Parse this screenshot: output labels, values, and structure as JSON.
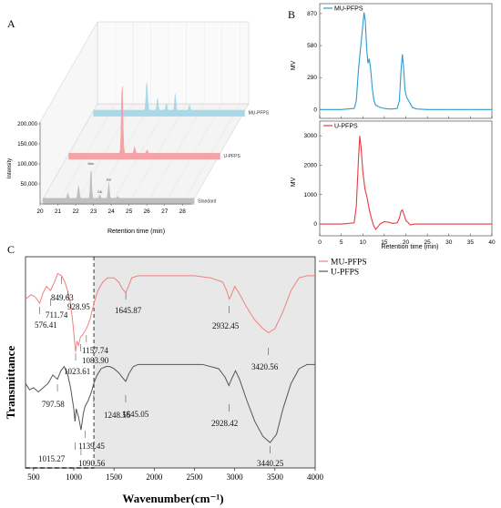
{
  "panel_letters": {
    "a": "A",
    "b": "B",
    "c": "C"
  },
  "chart_data": [
    {
      "id": "A",
      "type": "area",
      "xlabel": "Retention time (min)",
      "ylabel": "Intensity",
      "x_ticks": [
        "20",
        "21",
        "22",
        "23",
        "24",
        "25",
        "26",
        "27",
        "28"
      ],
      "y_ticks": [
        "50,000",
        "100,000",
        "150,000",
        "200,000"
      ],
      "xlim": [
        20,
        28.5
      ],
      "ylim": [
        0,
        200000
      ],
      "series": [
        {
          "name": "Standard",
          "color": "#bdbdbd",
          "peaks": [
            [
              21.4,
              12000,
              0.05
            ],
            [
              22.0,
              28000,
              0.06
            ],
            [
              22.7,
              70000,
              0.05
            ],
            [
              23.2,
              8000,
              0.05
            ],
            [
              23.7,
              35000,
              0.05
            ],
            [
              24.2,
              5000,
              0.05
            ]
          ],
          "peak_labels": [
            {
              "x": 22.7,
              "text": "Man"
            },
            {
              "x": 23.2,
              "text": "Glc"
            },
            {
              "x": 23.7,
              "text": "Gal"
            }
          ]
        },
        {
          "name": "U-PFPS",
          "color": "#f4a0a2",
          "peaks": [
            [
              23.0,
              160000,
              0.06
            ],
            [
              23.7,
              15000,
              0.05
            ],
            [
              24.4,
              8000,
              0.05
            ]
          ],
          "peak_labels": []
        },
        {
          "name": "MU-PFPS",
          "color": "#a6d8e8",
          "peaks": [
            [
              23.0,
              65000,
              0.06
            ],
            [
              23.6,
              28000,
              0.05
            ],
            [
              24.1,
              15000,
              0.05
            ],
            [
              24.6,
              38000,
              0.05
            ],
            [
              25.4,
              12000,
              0.05
            ]
          ],
          "peak_labels": []
        }
      ]
    },
    {
      "id": "B-top",
      "type": "line",
      "legend": "MU-PFPS",
      "legend_position": "top-left",
      "color": "#2b9bd2",
      "ylabel": "MV",
      "y_ticks": [
        0,
        290,
        580,
        870
      ],
      "ylim": [
        -80,
        960
      ],
      "xlim": [
        0,
        40
      ],
      "x": [
        0,
        5,
        8,
        8.5,
        9,
        9.5,
        10,
        10.3,
        10.6,
        10.9,
        11.2,
        11.5,
        11.8,
        12.2,
        12.6,
        13,
        14,
        15,
        16,
        17,
        18,
        18.5,
        18.9,
        19.2,
        19.5,
        19.8,
        20.2,
        20.8,
        21.5,
        22.5,
        25,
        30,
        35,
        40
      ],
      "y": [
        0,
        0,
        10,
        80,
        360,
        560,
        760,
        880,
        800,
        560,
        420,
        460,
        380,
        200,
        80,
        40,
        20,
        10,
        5,
        5,
        10,
        80,
        360,
        500,
        370,
        180,
        110,
        70,
        20,
        5,
        0,
        0,
        0,
        0
      ]
    },
    {
      "id": "B-bottom",
      "type": "line",
      "legend": "U-PFPS",
      "legend_position": "top-left",
      "color": "#e8393d",
      "xlabel": "Retention time (min)",
      "ylabel": "MV",
      "x_ticks": [
        0,
        5,
        10,
        15,
        20,
        25,
        30,
        35,
        40
      ],
      "y_ticks": [
        0,
        1000,
        2000,
        3000
      ],
      "ylim": [
        -400,
        3500
      ],
      "xlim": [
        0,
        40
      ],
      "x": [
        0,
        5,
        8,
        8.5,
        9,
        9.3,
        9.6,
        10,
        10.5,
        11,
        11.5,
        12,
        12.5,
        13,
        13.5,
        14,
        15,
        16,
        17,
        18,
        18.5,
        18.9,
        19.2,
        19.6,
        20,
        20.6,
        21,
        22,
        25,
        30,
        35,
        40
      ],
      "y": [
        0,
        0,
        40,
        600,
        2200,
        3000,
        2600,
        1800,
        1200,
        900,
        500,
        200,
        -50,
        -180,
        -100,
        0,
        80,
        60,
        20,
        40,
        200,
        440,
        480,
        320,
        120,
        40,
        -30,
        0,
        0,
        0,
        0,
        0
      ]
    },
    {
      "id": "C",
      "type": "line",
      "xlabel": "Wavenumber(cm⁻¹)",
      "ylabel": "Transmittance",
      "x_ticks": [
        500,
        1000,
        1500,
        2000,
        2500,
        3000,
        3500,
        4000
      ],
      "xlim": [
        400,
        4000
      ],
      "ylim": [
        0,
        100
      ],
      "shaded_from": 1250,
      "dashed_at": 1250,
      "legend_position": "top-right",
      "series": [
        {
          "name": "MU-PFPS",
          "color": "#f08080",
          "points": [
            [
              400,
              80
            ],
            [
              470,
              82
            ],
            [
              520,
              81
            ],
            [
              576,
              78
            ],
            [
              620,
              83
            ],
            [
              660,
              86
            ],
            [
              711,
              84
            ],
            [
              760,
              88
            ],
            [
              800,
              92
            ],
            [
              849,
              91
            ],
            [
              890,
              88
            ],
            [
              929,
              83
            ],
            [
              960,
              78
            ],
            [
              990,
              68
            ],
            [
              1010,
              60
            ],
            [
              1023,
              55
            ],
            [
              1040,
              60
            ],
            [
              1060,
              58
            ],
            [
              1083,
              62
            ],
            [
              1110,
              63
            ],
            [
              1157,
              66
            ],
            [
              1200,
              70
            ],
            [
              1250,
              78
            ],
            [
              1300,
              84
            ],
            [
              1360,
              88
            ],
            [
              1420,
              90
            ],
            [
              1500,
              90
            ],
            [
              1560,
              88
            ],
            [
              1600,
              85
            ],
            [
              1646,
              83
            ],
            [
              1680,
              86
            ],
            [
              1720,
              90
            ],
            [
              1800,
              91
            ],
            [
              2000,
              91
            ],
            [
              2200,
              91
            ],
            [
              2500,
              91
            ],
            [
              2700,
              90
            ],
            [
              2850,
              88
            ],
            [
              2900,
              84
            ],
            [
              2932,
              80
            ],
            [
              2960,
              82
            ],
            [
              3000,
              86
            ],
            [
              3050,
              83
            ],
            [
              3150,
              76
            ],
            [
              3250,
              70
            ],
            [
              3350,
              66
            ],
            [
              3420,
              64
            ],
            [
              3500,
              66
            ],
            [
              3600,
              74
            ],
            [
              3700,
              84
            ],
            [
              3800,
              90
            ],
            [
              3900,
              91
            ],
            [
              4000,
              91
            ]
          ],
          "peak_labels": [
            {
              "text": "576.41",
              "x": 576
            },
            {
              "text": "711.74",
              "x": 711
            },
            {
              "text": "849.63",
              "x": 849
            },
            {
              "text": "928.95",
              "x": 929
            },
            {
              "text": "1157.74",
              "x": 1157
            },
            {
              "text": "1083.90",
              "x": 1083
            },
            {
              "text": "1023.61",
              "x": 1023
            },
            {
              "text": "1645.87",
              "x": 1646
            },
            {
              "text": "2932.45",
              "x": 2932
            },
            {
              "text": "3420.56",
              "x": 3420
            }
          ]
        },
        {
          "name": "U-PFPS",
          "color": "#555555",
          "points": [
            [
              400,
              40
            ],
            [
              450,
              37
            ],
            [
              500,
              38
            ],
            [
              560,
              36
            ],
            [
              620,
              38
            ],
            [
              680,
              40
            ],
            [
              740,
              44
            ],
            [
              797,
              42
            ],
            [
              840,
              46
            ],
            [
              880,
              48
            ],
            [
              920,
              45
            ],
            [
              960,
              38
            ],
            [
              1000,
              28
            ],
            [
              1015,
              22
            ],
            [
              1030,
              28
            ],
            [
              1060,
              24
            ],
            [
              1090,
              18
            ],
            [
              1120,
              26
            ],
            [
              1139,
              29
            ],
            [
              1180,
              32
            ],
            [
              1220,
              36
            ],
            [
              1248,
              40
            ],
            [
              1290,
              44
            ],
            [
              1340,
              47
            ],
            [
              1400,
              48
            ],
            [
              1450,
              48
            ],
            [
              1500,
              47
            ],
            [
              1560,
              45
            ],
            [
              1600,
              43
            ],
            [
              1645,
              41
            ],
            [
              1690,
              45
            ],
            [
              1740,
              48
            ],
            [
              1800,
              49
            ],
            [
              2000,
              49
            ],
            [
              2300,
              49
            ],
            [
              2600,
              49
            ],
            [
              2800,
              47
            ],
            [
              2880,
              43
            ],
            [
              2928,
              39
            ],
            [
              2960,
              42
            ],
            [
              3010,
              46
            ],
            [
              3060,
              42
            ],
            [
              3150,
              32
            ],
            [
              3250,
              22
            ],
            [
              3350,
              15
            ],
            [
              3440,
              12
            ],
            [
              3520,
              16
            ],
            [
              3600,
              28
            ],
            [
              3700,
              40
            ],
            [
              3800,
              47
            ],
            [
              3900,
              49
            ],
            [
              4000,
              49
            ]
          ],
          "peak_labels": [
            {
              "text": "797.58",
              "x": 797
            },
            {
              "text": "1248.55",
              "x": 1248
            },
            {
              "text": "1645.05",
              "x": 1645
            },
            {
              "text": "1015.27",
              "x": 1015
            },
            {
              "text": "1139.45",
              "x": 1139
            },
            {
              "text": "1090.56",
              "x": 1090
            },
            {
              "text": "2928.42",
              "x": 2928
            },
            {
              "text": "3440.25",
              "x": 3440
            }
          ]
        }
      ]
    }
  ]
}
